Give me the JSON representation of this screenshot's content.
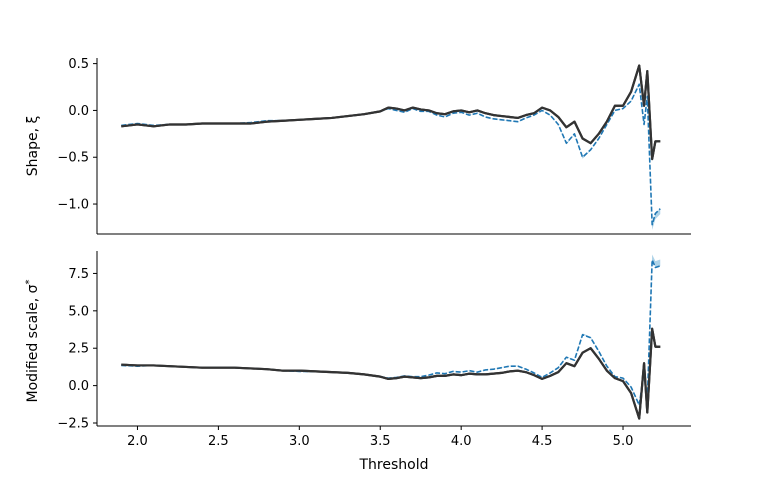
{
  "chart_data": [
    {
      "type": "line",
      "ylabel": "Shape, ξ",
      "xlim": [
        1.75,
        5.42
      ],
      "ylim": [
        -1.32,
        0.56
      ],
      "yticks": [
        0.5,
        0.0,
        -0.5,
        -1.0
      ],
      "ytick_labels": [
        "0.5",
        "0.0",
        "−0.5",
        "−1.0"
      ],
      "colors": {
        "main": "#333333",
        "dashed": "#1f77b4",
        "band": "#6baed6"
      },
      "x": [
        1.9,
        2.0,
        2.1,
        2.2,
        2.3,
        2.4,
        2.5,
        2.6,
        2.7,
        2.8,
        2.9,
        3.0,
        3.1,
        3.2,
        3.3,
        3.4,
        3.5,
        3.55,
        3.6,
        3.65,
        3.7,
        3.75,
        3.8,
        3.85,
        3.9,
        3.95,
        4.0,
        4.05,
        4.1,
        4.15,
        4.2,
        4.25,
        4.3,
        4.35,
        4.4,
        4.45,
        4.5,
        4.55,
        4.6,
        4.65,
        4.7,
        4.75,
        4.8,
        4.85,
        4.9,
        4.95,
        5.0,
        5.05,
        5.1,
        5.13,
        5.15,
        5.18,
        5.2,
        5.23
      ],
      "series": [
        {
          "style": "solid",
          "values": [
            -0.17,
            -0.15,
            -0.17,
            -0.15,
            -0.15,
            -0.14,
            -0.14,
            -0.14,
            -0.14,
            -0.12,
            -0.11,
            -0.1,
            -0.09,
            -0.08,
            -0.06,
            -0.04,
            -0.01,
            0.03,
            0.02,
            0.0,
            0.03,
            0.01,
            0.0,
            -0.03,
            -0.04,
            -0.01,
            0.0,
            -0.02,
            0.0,
            -0.03,
            -0.05,
            -0.06,
            -0.07,
            -0.08,
            -0.05,
            -0.03,
            0.03,
            0.0,
            -0.07,
            -0.18,
            -0.12,
            -0.3,
            -0.35,
            -0.25,
            -0.12,
            0.05,
            0.05,
            0.2,
            0.48,
            0.05,
            0.42,
            -0.52,
            -0.33,
            -0.33
          ]
        },
        {
          "style": "dashed",
          "values": [
            -0.16,
            -0.14,
            -0.16,
            -0.15,
            -0.15,
            -0.14,
            -0.14,
            -0.14,
            -0.13,
            -0.11,
            -0.11,
            -0.1,
            -0.09,
            -0.08,
            -0.06,
            -0.04,
            -0.01,
            0.02,
            0.0,
            -0.02,
            0.02,
            -0.01,
            -0.01,
            -0.05,
            -0.07,
            -0.03,
            -0.02,
            -0.05,
            -0.03,
            -0.07,
            -0.09,
            -0.1,
            -0.11,
            -0.12,
            -0.08,
            -0.05,
            0.0,
            -0.05,
            -0.15,
            -0.35,
            -0.25,
            -0.5,
            -0.42,
            -0.3,
            -0.15,
            0.0,
            0.02,
            0.1,
            0.28,
            -0.15,
            0.15,
            -1.22,
            -1.1,
            -1.05
          ]
        }
      ]
    },
    {
      "type": "line",
      "xlabel": "Threshold",
      "ylabel": "Modified scale, σ*",
      "xlim": [
        1.75,
        5.42
      ],
      "ylim": [
        -2.7,
        9.0
      ],
      "xticks": [
        2.0,
        2.5,
        3.0,
        3.5,
        4.0,
        4.5,
        5.0
      ],
      "xtick_labels": [
        "2.0",
        "2.5",
        "3.0",
        "3.5",
        "4.0",
        "4.5",
        "5.0"
      ],
      "yticks": [
        7.5,
        5.0,
        2.5,
        0.0,
        -2.5
      ],
      "ytick_labels": [
        "7.5",
        "5.0",
        "2.5",
        "0.0",
        "−2.5"
      ],
      "colors": {
        "main": "#333333",
        "dashed": "#1f77b4",
        "band": "#6baed6"
      },
      "x": [
        1.9,
        2.0,
        2.1,
        2.2,
        2.3,
        2.4,
        2.5,
        2.6,
        2.7,
        2.8,
        2.9,
        3.0,
        3.1,
        3.2,
        3.3,
        3.4,
        3.5,
        3.55,
        3.6,
        3.65,
        3.7,
        3.75,
        3.8,
        3.85,
        3.9,
        3.95,
        4.0,
        4.05,
        4.1,
        4.15,
        4.2,
        4.25,
        4.3,
        4.35,
        4.4,
        4.45,
        4.5,
        4.55,
        4.6,
        4.65,
        4.7,
        4.75,
        4.8,
        4.85,
        4.9,
        4.95,
        5.0,
        5.05,
        5.1,
        5.13,
        5.15,
        5.18,
        5.2,
        5.23
      ],
      "series": [
        {
          "style": "solid",
          "values": [
            1.4,
            1.35,
            1.35,
            1.3,
            1.25,
            1.2,
            1.2,
            1.2,
            1.15,
            1.1,
            1.0,
            1.0,
            0.95,
            0.9,
            0.85,
            0.75,
            0.6,
            0.45,
            0.5,
            0.6,
            0.55,
            0.5,
            0.55,
            0.65,
            0.65,
            0.75,
            0.7,
            0.8,
            0.75,
            0.75,
            0.8,
            0.85,
            0.95,
            1.0,
            0.9,
            0.7,
            0.45,
            0.65,
            0.9,
            1.5,
            1.3,
            2.2,
            2.5,
            1.8,
            1.0,
            0.5,
            0.3,
            -0.5,
            -2.2,
            1.5,
            -1.8,
            3.8,
            2.6,
            2.6
          ]
        },
        {
          "style": "dashed",
          "values": [
            1.35,
            1.3,
            1.35,
            1.3,
            1.25,
            1.2,
            1.2,
            1.2,
            1.15,
            1.1,
            1.0,
            0.95,
            0.95,
            0.9,
            0.85,
            0.75,
            0.6,
            0.5,
            0.55,
            0.65,
            0.6,
            0.6,
            0.7,
            0.85,
            0.8,
            0.95,
            0.9,
            1.0,
            0.9,
            1.05,
            1.1,
            1.2,
            1.3,
            1.3,
            1.1,
            0.85,
            0.55,
            0.85,
            1.2,
            1.9,
            1.7,
            3.4,
            3.2,
            2.3,
            1.3,
            0.6,
            0.5,
            -0.1,
            -1.3,
            0.9,
            -1.0,
            8.4,
            7.9,
            8.0
          ]
        }
      ]
    }
  ]
}
